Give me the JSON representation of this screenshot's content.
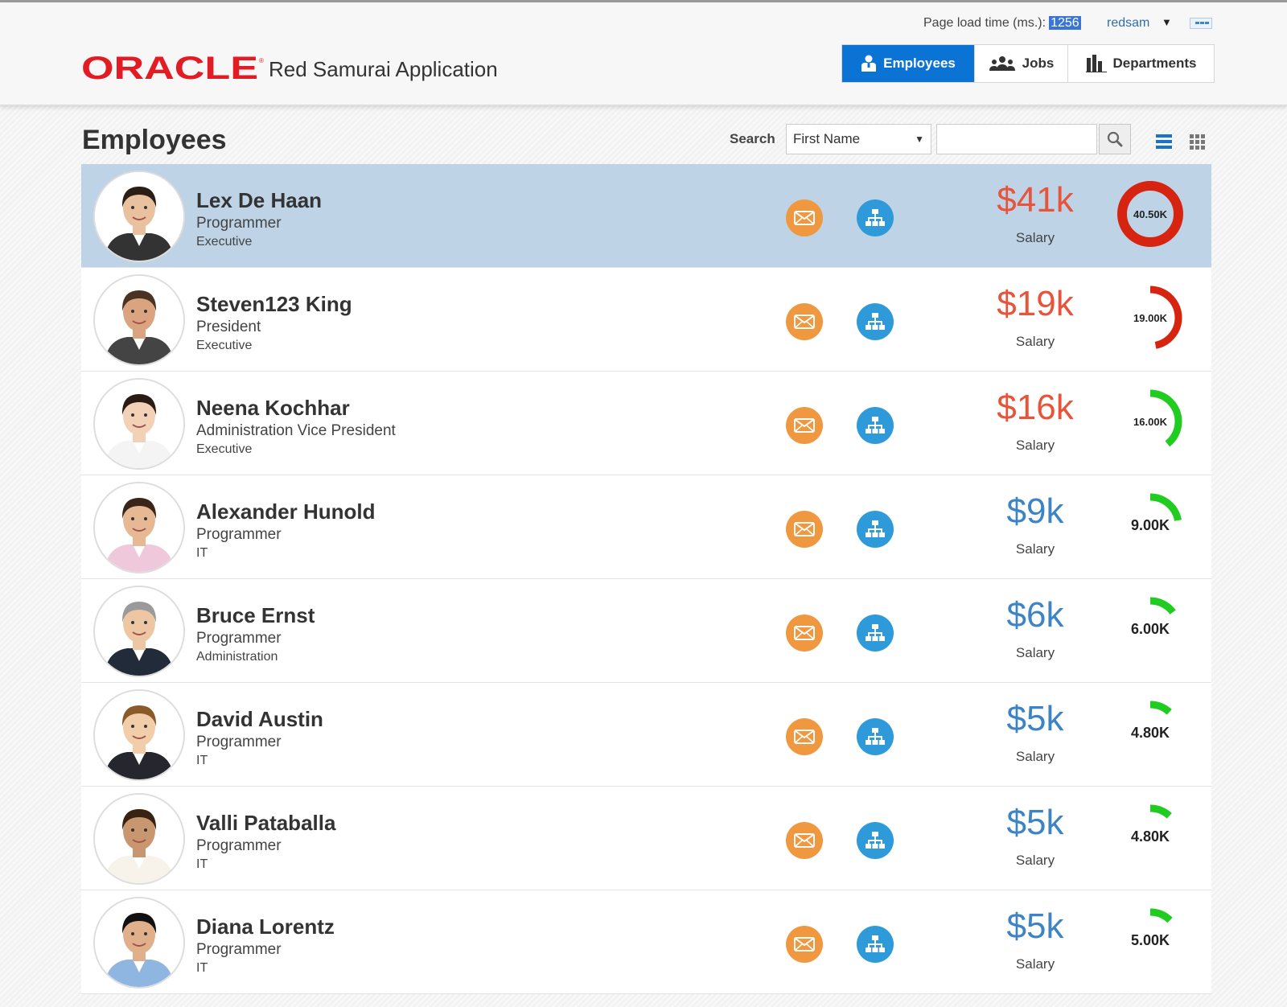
{
  "header": {
    "load_time_label": "Page load time (ms.):",
    "load_time_value": "1256",
    "user": "redsam",
    "app_title": "Red Samurai Application",
    "brand": "ORACLE",
    "brand_color": "#e31b23"
  },
  "nav": {
    "tabs": [
      {
        "label": "Employees",
        "icon": "employee-icon",
        "active": true
      },
      {
        "label": "Jobs",
        "icon": "people-group-icon",
        "active": false
      },
      {
        "label": "Departments",
        "icon": "bar-chart-icon",
        "active": false
      }
    ]
  },
  "page": {
    "title": "Employees",
    "search_label": "Search",
    "search_field": "First Name",
    "search_value": ""
  },
  "colors": {
    "accent": "#0b73d3",
    "selected_row": "#bed3e5",
    "mail": "#f0983f",
    "org": "#2f9ad9",
    "salary_high": "#e8543a",
    "salary_low": "#3d84c6",
    "gauge_red": "#d62410",
    "gauge_green": "#1fcc1f"
  },
  "employees": [
    {
      "name": "Lex De Haan",
      "job": "Programmer",
      "department": "Executive",
      "salary": "$41k",
      "salary_label": "Salary",
      "gauge_label": "40.50K",
      "gauge_value": 40.5,
      "selected": true
    },
    {
      "name": "Steven123 King",
      "job": "President",
      "department": "Executive",
      "salary": "$19k",
      "salary_label": "Salary",
      "gauge_label": "19.00K",
      "gauge_value": 19.0,
      "selected": false
    },
    {
      "name": "Neena Kochhar",
      "job": "Administration Vice President",
      "department": "Executive",
      "salary": "$16k",
      "salary_label": "Salary",
      "gauge_label": "16.00K",
      "gauge_value": 16.0,
      "selected": false
    },
    {
      "name": "Alexander Hunold",
      "job": "Programmer",
      "department": "IT",
      "salary": "$9k",
      "salary_label": "Salary",
      "gauge_label": "9.00K",
      "gauge_value": 9.0,
      "selected": false
    },
    {
      "name": "Bruce Ernst",
      "job": "Programmer",
      "department": "Administration",
      "salary": "$6k",
      "salary_label": "Salary",
      "gauge_label": "6.00K",
      "gauge_value": 6.0,
      "selected": false
    },
    {
      "name": "David Austin",
      "job": "Programmer",
      "department": "IT",
      "salary": "$5k",
      "salary_label": "Salary",
      "gauge_label": "4.80K",
      "gauge_value": 4.8,
      "selected": false
    },
    {
      "name": "Valli Pataballa",
      "job": "Programmer",
      "department": "IT",
      "salary": "$5k",
      "salary_label": "Salary",
      "gauge_label": "4.80K",
      "gauge_value": 4.8,
      "selected": false
    },
    {
      "name": "Diana Lorentz",
      "job": "Programmer",
      "department": "IT",
      "salary": "$5k",
      "salary_label": "Salary",
      "gauge_label": "5.00K",
      "gauge_value": 5.0,
      "selected": false
    }
  ]
}
